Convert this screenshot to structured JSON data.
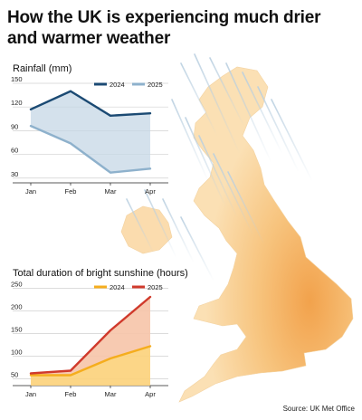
{
  "headline": "How the UK is experiencing much drier and warmer weather",
  "source": "Source: UK Met Office",
  "colors": {
    "rain_2024": "#1b4a73",
    "rain_2025": "#8eb1cc",
    "rain_fill": "#c6d7e5",
    "sun_2024": "#f5ad1d",
    "sun_2025": "#d03a2c",
    "sun_fill_upper": "#f6c4a8",
    "sun_fill_lower": "#fcd27a",
    "map_land": "#f6c27a",
    "map_rain": "#b9cfe0"
  },
  "chart_data": [
    {
      "type": "line",
      "title": "Rainfall (mm)",
      "categories": [
        "Jan",
        "Feb",
        "Mar",
        "Apr"
      ],
      "yticks": [
        30,
        60,
        90,
        120,
        150
      ],
      "ylim": [
        24,
        150
      ],
      "legend_position": "top-right",
      "grid": true,
      "series": [
        {
          "name": "2024",
          "values": [
            117,
            140,
            109,
            112
          ],
          "color": "#1b4a73"
        },
        {
          "name": "2025",
          "values": [
            96,
            74,
            37,
            42
          ],
          "color": "#8eb1cc"
        }
      ]
    },
    {
      "type": "area",
      "title": "Total duration of bright sunshine (hours)",
      "categories": [
        "Jan",
        "Feb",
        "Mar",
        "Apr"
      ],
      "yticks": [
        50,
        100,
        150,
        200,
        250
      ],
      "ylim": [
        35,
        255
      ],
      "legend_position": "top-right",
      "grid": true,
      "series": [
        {
          "name": "2024",
          "values": [
            58,
            58,
            95,
            122
          ],
          "color": "#f5ad1d"
        },
        {
          "name": "2025",
          "values": [
            62,
            68,
            157,
            231
          ],
          "color": "#d03a2c"
        }
      ]
    }
  ]
}
